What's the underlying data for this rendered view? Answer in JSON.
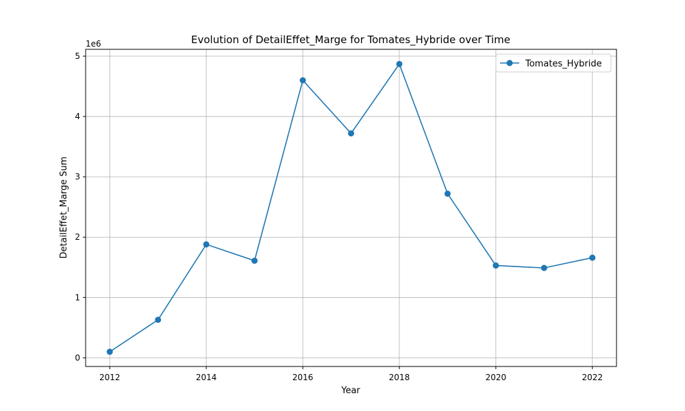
{
  "chart_data": {
    "type": "line",
    "title": "Evolution of DetailEffet_Marge for Tomates_Hybride over Time",
    "xlabel": "Year",
    "ylabel": "DetailEffet_Marge Sum",
    "y_offset_label": "1e6",
    "x": [
      2012,
      2013,
      2014,
      2015,
      2016,
      2017,
      2018,
      2019,
      2020,
      2021,
      2022
    ],
    "series": [
      {
        "name": "Tomates_Hybride",
        "color": "#1f77b4",
        "values": [
          100000,
          630000,
          1880000,
          1610000,
          4600000,
          3720000,
          4870000,
          2720000,
          1530000,
          1490000,
          1660000
        ]
      }
    ],
    "xlim": [
      2011.5,
      2022.5
    ],
    "ylim": [
      -143500,
      5113500
    ],
    "x_ticks": [
      2012,
      2014,
      2016,
      2018,
      2020,
      2022
    ],
    "y_ticks": [
      0,
      1000000,
      2000000,
      3000000,
      4000000,
      5000000
    ],
    "y_tick_labels": [
      "0",
      "1",
      "2",
      "3",
      "4",
      "5"
    ],
    "grid": true,
    "legend_position": "upper-right"
  }
}
